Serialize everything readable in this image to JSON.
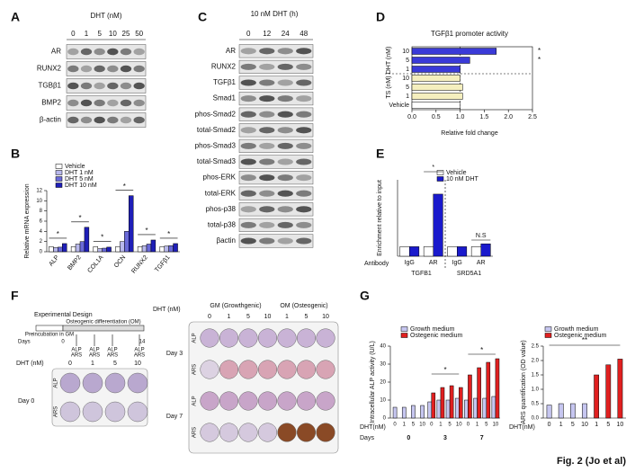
{
  "A": {
    "letter": "A",
    "header": "DHT (nM)",
    "lanes": [
      "0",
      "1",
      "5",
      "10",
      "25",
      "50"
    ],
    "rows": [
      "AR",
      "RUNX2",
      "TGBβ1",
      "BMP2",
      "β-actin"
    ]
  },
  "B": {
    "letter": "B",
    "ylabel": "Relative mRNA expression",
    "categories": [
      "ALP",
      "BMP2",
      "COL1A",
      "OCN",
      "RUNX2",
      "TGFβ1"
    ],
    "series": [
      {
        "name": "Vehicle",
        "color": "#ffffff",
        "values": [
          1,
          1,
          1,
          1,
          1,
          1
        ]
      },
      {
        "name": "DHT 1 nM",
        "color": "#b8b8ec",
        "values": [
          0.8,
          1.5,
          0.6,
          2,
          1.2,
          1.1
        ]
      },
      {
        "name": "DHT 5 nM",
        "color": "#6a6ad8",
        "values": [
          0.9,
          2,
          0.7,
          4,
          1.5,
          1.2
        ]
      },
      {
        "name": "DHT 10 nM",
        "color": "#1f1fb8",
        "values": [
          1.6,
          4.8,
          0.9,
          11,
          2.3,
          1.6
        ]
      }
    ],
    "ylim": [
      0,
      12
    ],
    "yticks": [
      0,
      2,
      4,
      6,
      8,
      10,
      12
    ],
    "annotations": [
      "*",
      "*",
      "*",
      "*",
      "*",
      "*"
    ]
  },
  "C": {
    "letter": "C",
    "header": "10 nM DHT (h)",
    "lanes": [
      "0",
      "12",
      "24",
      "48"
    ],
    "rows": [
      "AR",
      "RUNX2",
      "TGFβ1",
      "Smad1",
      "phos-Smad2",
      "total-Smad2",
      "phos-Smad3",
      "total-Smad3",
      "phos-ERK",
      "total-ERK",
      "phos-p38",
      "total-p38",
      "βactin"
    ]
  },
  "D": {
    "letter": "D",
    "title": "TGFβ1 promoter activity",
    "categories": [
      "10",
      "5",
      "1",
      "10",
      "5",
      "1",
      "Vehicle"
    ],
    "values": [
      1.75,
      1.2,
      1.0,
      1.0,
      1.05,
      1.05,
      1.0
    ],
    "colors": [
      "#3a3ad8",
      "#3a3ad8",
      "#3a3ad8",
      "#f5efbe",
      "#f5efbe",
      "#f5efbe",
      "#ffffff"
    ],
    "groups": [
      "DHT (nM)",
      "TS (nM)"
    ],
    "xlim": [
      0,
      2.5
    ],
    "xticks": [
      {
        "value": 0,
        "label": "0.0"
      },
      {
        "value": 0.5,
        "label": "0.5"
      },
      {
        "value": 1,
        "label": "1.0"
      },
      {
        "value": 1.5,
        "label": "1.5"
      },
      {
        "value": 2,
        "label": "2.0"
      },
      {
        "value": 2.5,
        "label": "2.5"
      }
    ],
    "xlabel": "Relative fold change",
    "annotations": [
      "*",
      "*"
    ]
  },
  "E": {
    "letter": "E",
    "ylabel": "Enrichment relative to input",
    "row_label": "Antibody",
    "categories": [
      "IgG",
      "AR",
      "IgG",
      "AR"
    ],
    "genes": [
      "TGFB1",
      "SRD5A1"
    ],
    "series": [
      {
        "name": "Vehicle",
        "color": "#ffffff",
        "values": [
          1,
          1,
          1,
          1
        ]
      },
      {
        "name": "10 nM DHT",
        "color": "#1a1acc",
        "values": [
          1,
          6.5,
          1,
          1.3
        ]
      }
    ],
    "ylim": [
      0,
      8
    ],
    "annotations": [
      "*",
      "N.S"
    ]
  },
  "F": {
    "letter": "F",
    "design_title": "Experimental Design",
    "days_label": "Days",
    "timeline": [
      "Preincubation in GM",
      "Osteogenic differentiation (OM)"
    ],
    "day_marks": [
      "0",
      "14"
    ],
    "assays": [
      "ALP",
      "ARS"
    ],
    "dose_label": "DHT (nM)",
    "doses": [
      "0",
      "1",
      "5",
      "10"
    ],
    "day0": "Day 0",
    "gm": "GM (Growthgenic)",
    "om": "OM (Osteogenic)",
    "plate_doses": [
      "0",
      "1",
      "5",
      "10",
      "1",
      "5",
      "10"
    ],
    "days": [
      "Day 3",
      "Day 7"
    ]
  },
  "G": {
    "letter": "G",
    "alp": {
      "ylabel": "Intracellular ALP activity (U/L)",
      "x_label": "DHT(nM)",
      "days_label": "Days",
      "days": [
        "0",
        "3",
        "7"
      ],
      "categories": [
        "0",
        "1",
        "5",
        "10",
        "0",
        "1",
        "5",
        "10",
        "0",
        "1",
        "5",
        "10"
      ],
      "series": [
        {
          "name": "Growth medium",
          "color": "#c6c6f0",
          "values": [
            6,
            6,
            7,
            7,
            9,
            10,
            10,
            11,
            10,
            11,
            11,
            12
          ]
        },
        {
          "name": "Ostegenic medium",
          "color": "#e02020",
          "values": [
            null,
            null,
            null,
            null,
            14,
            17,
            18,
            17,
            24,
            28,
            31,
            33
          ]
        }
      ],
      "ylim": [
        0,
        40
      ],
      "yticks": [
        0,
        10,
        20,
        30,
        40
      ],
      "annotations": [
        "*",
        "*"
      ]
    },
    "ars": {
      "ylabel": "ARS quantification (OD value)",
      "x_label": "DHT(nM)",
      "categories": [
        "0",
        "1",
        "5",
        "10",
        "1",
        "5",
        "10"
      ],
      "series": [
        {
          "name": "Growth medium",
          "color": "#c6c6f0",
          "values": [
            0.45,
            0.5,
            0.5,
            0.5,
            null,
            null,
            null
          ]
        },
        {
          "name": "Ostegenic medium",
          "color": "#e02020",
          "values": [
            null,
            null,
            null,
            null,
            1.5,
            1.85,
            2.05
          ]
        }
      ],
      "ylim": [
        0,
        2.5
      ],
      "yticks": [
        {
          "value": 0,
          "label": "0.0"
        },
        {
          "value": 0.5,
          "label": "0.5"
        },
        {
          "value": 1,
          "label": "1.0"
        },
        {
          "value": 1.5,
          "label": "1.5"
        },
        {
          "value": 2,
          "label": "2.0"
        },
        {
          "value": 2.5,
          "label": "2.5"
        }
      ],
      "annotations": [
        "**"
      ]
    }
  },
  "figure_label": "Fig. 2 (Jo et al)"
}
